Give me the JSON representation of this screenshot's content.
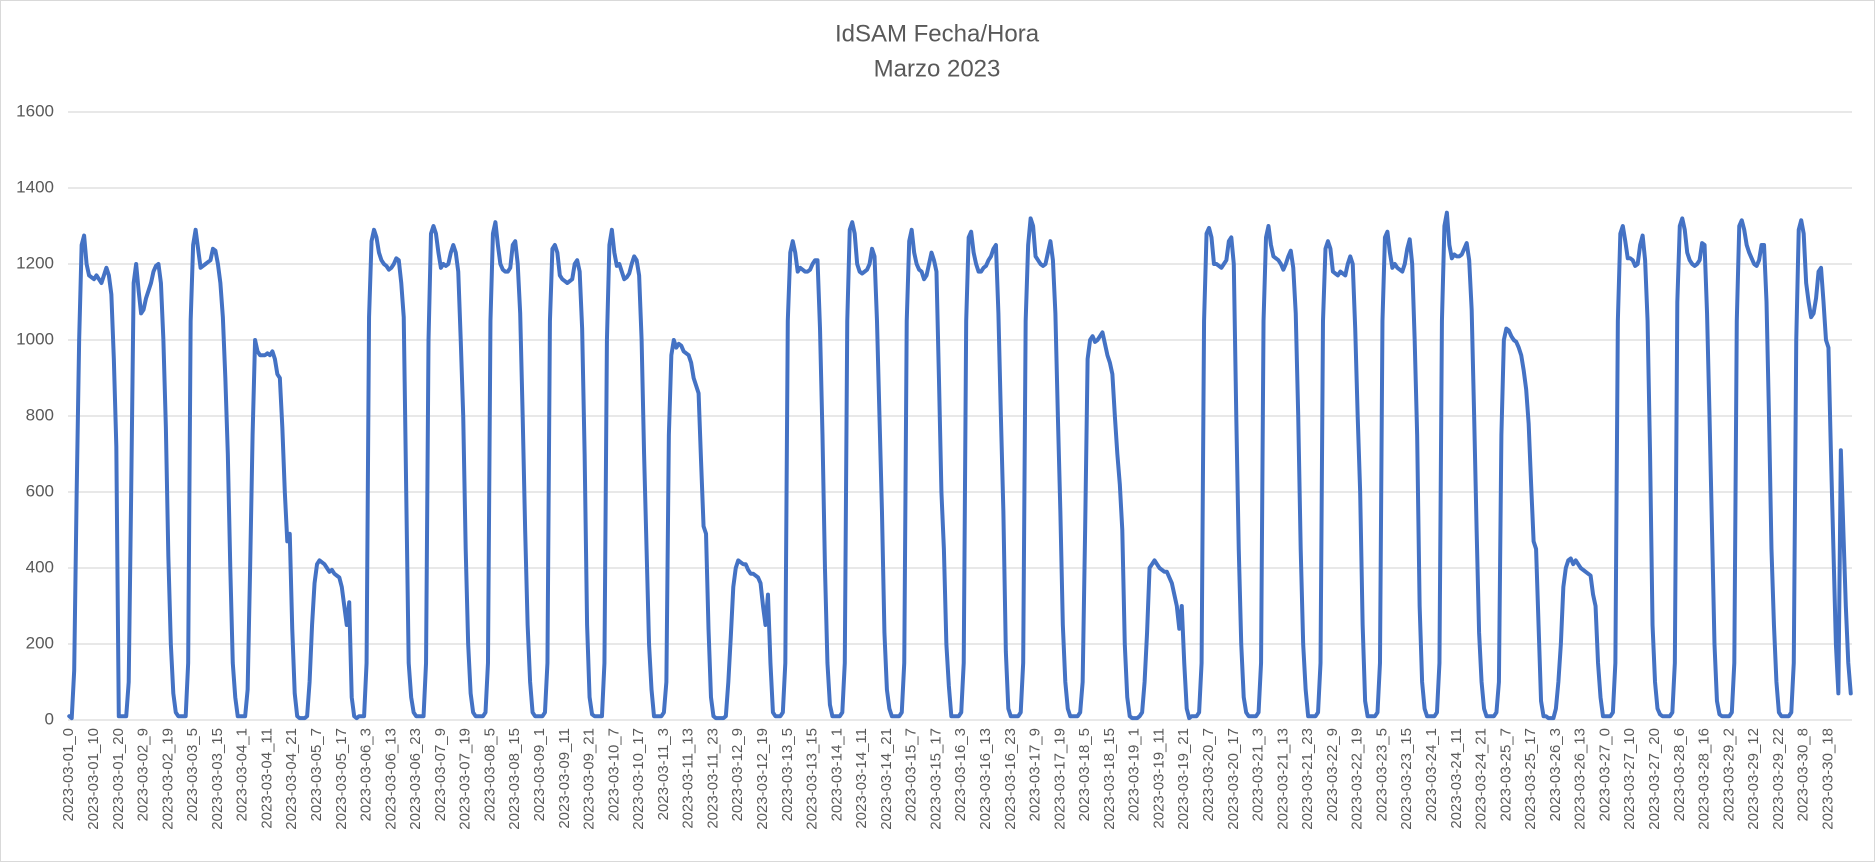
{
  "chart_data": {
    "type": "line",
    "title": "IdSAM Fecha/Hora",
    "subtitle": "Marzo 2023",
    "color": "#4472c4",
    "grid": true,
    "ylim": [
      0,
      1600
    ],
    "yticks": [
      0,
      200,
      400,
      600,
      800,
      1000,
      1200,
      1400,
      1600
    ],
    "categories": [
      "2023-03-01_0",
      null,
      null,
      null,
      null,
      null,
      null,
      null,
      null,
      null,
      "2023-03-01_10",
      null,
      null,
      null,
      null,
      null,
      null,
      null,
      null,
      null,
      "2023-03-01_20",
      null,
      null,
      null,
      null,
      null,
      null,
      null,
      null,
      null,
      "2023-03-02_9",
      null,
      null,
      null,
      null,
      null,
      null,
      null,
      null,
      null,
      "2023-03-02_19",
      null,
      null,
      null,
      null,
      null,
      null,
      null,
      null,
      null,
      "2023-03-03_5",
      null,
      null,
      null,
      null,
      null,
      null,
      null,
      null,
      null,
      "2023-03-03_15",
      null,
      null,
      null,
      null,
      null,
      null,
      null,
      null,
      null,
      "2023-03-04_1",
      null,
      null,
      null,
      null,
      null,
      null,
      null,
      null,
      null,
      "2023-03-04_11",
      null,
      null,
      null,
      null,
      null,
      null,
      null,
      null,
      null,
      "2023-03-04_21",
      null,
      null,
      null,
      null,
      null,
      null,
      null,
      null,
      null,
      "2023-03-05_7",
      null,
      null,
      null,
      null,
      null,
      null,
      null,
      null,
      null,
      "2023-03-05_17",
      null,
      null,
      null,
      null,
      null,
      null,
      null,
      null,
      null,
      "2023-03-06_3",
      null,
      null,
      null,
      null,
      null,
      null,
      null,
      null,
      null,
      "2023-03-06_13",
      null,
      null,
      null,
      null,
      null,
      null,
      null,
      null,
      null,
      "2023-03-06_23",
      null,
      null,
      null,
      null,
      null,
      null,
      null,
      null,
      null,
      "2023-03-07_9",
      null,
      null,
      null,
      null,
      null,
      null,
      null,
      null,
      null,
      "2023-03-07_19",
      null,
      null,
      null,
      null,
      null,
      null,
      null,
      null,
      null,
      "2023-03-08_5",
      null,
      null,
      null,
      null,
      null,
      null,
      null,
      null,
      null,
      "2023-03-08_15",
      null,
      null,
      null,
      null,
      null,
      null,
      null,
      null,
      null,
      "2023-03-09_1",
      null,
      null,
      null,
      null,
      null,
      null,
      null,
      null,
      null,
      "2023-03-09_11",
      null,
      null,
      null,
      null,
      null,
      null,
      null,
      null,
      null,
      "2023-03-09_21",
      null,
      null,
      null,
      null,
      null,
      null,
      null,
      null,
      null,
      "2023-03-10_7",
      null,
      null,
      null,
      null,
      null,
      null,
      null,
      null,
      null,
      "2023-03-10_17",
      null,
      null,
      null,
      null,
      null,
      null,
      null,
      null,
      null,
      "2023-03-11_3",
      null,
      null,
      null,
      null,
      null,
      null,
      null,
      null,
      null,
      "2023-03-11_13",
      null,
      null,
      null,
      null,
      null,
      null,
      null,
      null,
      null,
      "2023-03-11_23",
      null,
      null,
      null,
      null,
      null,
      null,
      null,
      null,
      null,
      "2023-03-12_9",
      null,
      null,
      null,
      null,
      null,
      null,
      null,
      null,
      null,
      "2023-03-12_19",
      null,
      null,
      null,
      null,
      null,
      null,
      null,
      null,
      null,
      "2023-03-13_5",
      null,
      null,
      null,
      null,
      null,
      null,
      null,
      null,
      null,
      "2023-03-13_15",
      null,
      null,
      null,
      null,
      null,
      null,
      null,
      null,
      null,
      "2023-03-14_1",
      null,
      null,
      null,
      null,
      null,
      null,
      null,
      null,
      null,
      "2023-03-14_11",
      null,
      null,
      null,
      null,
      null,
      null,
      null,
      null,
      null,
      "2023-03-14_21",
      null,
      null,
      null,
      null,
      null,
      null,
      null,
      null,
      null,
      "2023-03-15_7",
      null,
      null,
      null,
      null,
      null,
      null,
      null,
      null,
      null,
      "2023-03-15_17",
      null,
      null,
      null,
      null,
      null,
      null,
      null,
      null,
      null,
      "2023-03-16_3",
      null,
      null,
      null,
      null,
      null,
      null,
      null,
      null,
      null,
      "2023-03-16_13",
      null,
      null,
      null,
      null,
      null,
      null,
      null,
      null,
      null,
      "2023-03-16_23",
      null,
      null,
      null,
      null,
      null,
      null,
      null,
      null,
      null,
      "2023-03-17_9",
      null,
      null,
      null,
      null,
      null,
      null,
      null,
      null,
      null,
      "2023-03-17_19",
      null,
      null,
      null,
      null,
      null,
      null,
      null,
      null,
      null,
      "2023-03-18_5",
      null,
      null,
      null,
      null,
      null,
      null,
      null,
      null,
      null,
      "2023-03-18_15",
      null,
      null,
      null,
      null,
      null,
      null,
      null,
      null,
      null,
      "2023-03-19_1",
      null,
      null,
      null,
      null,
      null,
      null,
      null,
      null,
      null,
      "2023-03-19_11",
      null,
      null,
      null,
      null,
      null,
      null,
      null,
      null,
      null,
      "2023-03-19_21",
      null,
      null,
      null,
      null,
      null,
      null,
      null,
      null,
      null,
      "2023-03-20_7",
      null,
      null,
      null,
      null,
      null,
      null,
      null,
      null,
      null,
      "2023-03-20_17",
      null,
      null,
      null,
      null,
      null,
      null,
      null,
      null,
      null,
      "2023-03-21_3",
      null,
      null,
      null,
      null,
      null,
      null,
      null,
      null,
      null,
      "2023-03-21_13",
      null,
      null,
      null,
      null,
      null,
      null,
      null,
      null,
      null,
      "2023-03-21_23",
      null,
      null,
      null,
      null,
      null,
      null,
      null,
      null,
      null,
      "2023-03-22_9",
      null,
      null,
      null,
      null,
      null,
      null,
      null,
      null,
      null,
      "2023-03-22_19",
      null,
      null,
      null,
      null,
      null,
      null,
      null,
      null,
      null,
      "2023-03-23_5",
      null,
      null,
      null,
      null,
      null,
      null,
      null,
      null,
      null,
      "2023-03-23_15",
      null,
      null,
      null,
      null,
      null,
      null,
      null,
      null,
      null,
      "2023-03-24_1",
      null,
      null,
      null,
      null,
      null,
      null,
      null,
      null,
      null,
      "2023-03-24_11",
      null,
      null,
      null,
      null,
      null,
      null,
      null,
      null,
      null,
      "2023-03-24_21",
      null,
      null,
      null,
      null,
      null,
      null,
      null,
      null,
      null,
      "2023-03-25_7",
      null,
      null,
      null,
      null,
      null,
      null,
      null,
      null,
      null,
      "2023-03-25_17",
      null,
      null,
      null,
      null,
      null,
      null,
      null,
      null,
      null,
      "2023-03-26_3",
      null,
      null,
      null,
      null,
      null,
      null,
      null,
      null,
      null,
      "2023-03-26_13",
      null,
      null,
      null,
      null,
      null,
      null,
      null,
      null,
      null,
      "2023-03-27_0",
      null,
      null,
      null,
      null,
      null,
      null,
      null,
      null,
      null,
      "2023-03-27_10",
      null,
      null,
      null,
      null,
      null,
      null,
      null,
      null,
      null,
      "2023-03-27_20",
      null,
      null,
      null,
      null,
      null,
      null,
      null,
      null,
      null,
      "2023-03-28_6",
      null,
      null,
      null,
      null,
      null,
      null,
      null,
      null,
      null,
      "2023-03-28_16",
      null,
      null,
      null,
      null,
      null,
      null,
      null,
      null,
      null,
      "2023-03-29_2",
      null,
      null,
      null,
      null,
      null,
      null,
      null,
      null,
      null,
      "2023-03-29_12",
      null,
      null,
      null,
      null,
      null,
      null,
      null,
      null,
      null,
      "2023-03-29_22",
      null,
      null,
      null,
      null,
      null,
      null,
      null,
      null,
      null,
      "2023-03-30_8",
      null,
      null,
      null,
      null,
      null,
      null,
      null,
      null,
      null,
      "2023-03-30_18",
      null,
      null,
      null,
      null,
      null,
      null,
      null,
      null,
      null
    ],
    "values": [
      10,
      5,
      130,
      600,
      1000,
      1250,
      1275,
      1200,
      1170,
      1165,
      1160,
      1170,
      1160,
      1150,
      1170,
      1190,
      1170,
      1120,
      950,
      720,
      10,
      10,
      10,
      10,
      100,
      600,
      1150,
      1200,
      1130,
      1070,
      1080,
      1110,
      1130,
      1150,
      1180,
      1195,
      1200,
      1150,
      1000,
      770,
      430,
      200,
      70,
      20,
      10,
      10,
      10,
      10,
      150,
      1050,
      1250,
      1290,
      1240,
      1190,
      1195,
      1200,
      1205,
      1210,
      1240,
      1235,
      1200,
      1150,
      1060,
      900,
      700,
      400,
      150,
      60,
      10,
      10,
      10,
      10,
      80,
      400,
      750,
      1000,
      970,
      960,
      960,
      960,
      965,
      960,
      970,
      950,
      910,
      900,
      770,
      600,
      470,
      490,
      240,
      70,
      10,
      5,
      5,
      5,
      10,
      100,
      250,
      360,
      410,
      420,
      415,
      410,
      400,
      390,
      395,
      385,
      380,
      375,
      350,
      300,
      250,
      310,
      60,
      10,
      5,
      10,
      10,
      10,
      150,
      1060,
      1260,
      1290,
      1270,
      1230,
      1210,
      1200,
      1195,
      1185,
      1190,
      1200,
      1215,
      1210,
      1150,
      1060,
      600,
      150,
      60,
      20,
      10,
      10,
      10,
      10,
      150,
      1000,
      1280,
      1300,
      1280,
      1230,
      1190,
      1200,
      1195,
      1200,
      1230,
      1250,
      1230,
      1180,
      1000,
      800,
      450,
      200,
      70,
      20,
      10,
      10,
      10,
      10,
      20,
      150,
      1050,
      1280,
      1310,
      1250,
      1200,
      1185,
      1180,
      1180,
      1190,
      1250,
      1260,
      1200,
      1070,
      800,
      500,
      250,
      100,
      20,
      10,
      10,
      10,
      10,
      20,
      150,
      1050,
      1240,
      1250,
      1230,
      1170,
      1160,
      1155,
      1150,
      1155,
      1160,
      1200,
      1210,
      1180,
      1030,
      700,
      250,
      60,
      15,
      10,
      10,
      10,
      10,
      150,
      1000,
      1250,
      1290,
      1230,
      1195,
      1200,
      1180,
      1160,
      1165,
      1175,
      1200,
      1220,
      1210,
      1170,
      1000,
      700,
      450,
      200,
      80,
      10,
      10,
      10,
      10,
      20,
      100,
      750,
      960,
      1000,
      980,
      990,
      985,
      970,
      965,
      960,
      940,
      900,
      880,
      860,
      680,
      510,
      490,
      240,
      60,
      10,
      5,
      5,
      5,
      5,
      10,
      100,
      220,
      350,
      400,
      420,
      415,
      410,
      410,
      395,
      385,
      385,
      380,
      375,
      360,
      300,
      250,
      330,
      150,
      20,
      10,
      10,
      10,
      20,
      150,
      1050,
      1230,
      1260,
      1230,
      1180,
      1190,
      1185,
      1180,
      1180,
      1185,
      1200,
      1210,
      1210,
      1030,
      750,
      400,
      150,
      40,
      10,
      10,
      10,
      10,
      20,
      150,
      1050,
      1290,
      1310,
      1280,
      1200,
      1180,
      1175,
      1180,
      1185,
      1200,
      1240,
      1220,
      1050,
      800,
      550,
      230,
      80,
      30,
      10,
      10,
      10,
      10,
      20,
      150,
      1050,
      1260,
      1290,
      1230,
      1200,
      1185,
      1180,
      1160,
      1170,
      1200,
      1230,
      1210,
      1180,
      900,
      600,
      450,
      200,
      90,
      10,
      10,
      10,
      10,
      20,
      150,
      1050,
      1270,
      1285,
      1230,
      1200,
      1180,
      1180,
      1190,
      1195,
      1210,
      1220,
      1240,
      1250,
      1070,
      800,
      550,
      180,
      30,
      10,
      10,
      10,
      10,
      20,
      150,
      1050,
      1250,
      1320,
      1300,
      1220,
      1210,
      1200,
      1195,
      1200,
      1230,
      1260,
      1210,
      1070,
      800,
      550,
      250,
      100,
      30,
      10,
      10,
      10,
      10,
      20,
      100,
      500,
      950,
      1000,
      1010,
      995,
      1000,
      1010,
      1020,
      990,
      960,
      940,
      910,
      800,
      700,
      620,
      500,
      200,
      60,
      10,
      5,
      5,
      5,
      10,
      20,
      100,
      230,
      400,
      410,
      420,
      410,
      400,
      395,
      390,
      390,
      375,
      360,
      330,
      300,
      240,
      300,
      150,
      30,
      5,
      10,
      10,
      10,
      20,
      150,
      1050,
      1280,
      1295,
      1270,
      1200,
      1200,
      1195,
      1190,
      1200,
      1210,
      1260,
      1270,
      1200,
      800,
      450,
      200,
      60,
      20,
      10,
      10,
      10,
      10,
      20,
      150,
      1050,
      1270,
      1300,
      1250,
      1220,
      1215,
      1210,
      1200,
      1185,
      1200,
      1220,
      1235,
      1190,
      1070,
      800,
      450,
      200,
      80,
      10,
      10,
      10,
      10,
      20,
      150,
      1050,
      1240,
      1260,
      1240,
      1180,
      1175,
      1170,
      1180,
      1175,
      1170,
      1200,
      1220,
      1200,
      1030,
      800,
      600,
      250,
      50,
      10,
      10,
      10,
      10,
      20,
      150,
      1050,
      1270,
      1285,
      1230,
      1190,
      1200,
      1190,
      1185,
      1180,
      1200,
      1240,
      1265,
      1200,
      1000,
      750,
      300,
      100,
      30,
      10,
      10,
      10,
      10,
      20,
      150,
      1050,
      1300,
      1335,
      1250,
      1215,
      1225,
      1220,
      1220,
      1225,
      1240,
      1255,
      1210,
      1080,
      800,
      500,
      230,
      100,
      30,
      10,
      10,
      10,
      10,
      20,
      100,
      750,
      1000,
      1030,
      1025,
      1010,
      1000,
      995,
      980,
      960,
      920,
      870,
      780,
      620,
      470,
      450,
      250,
      50,
      10,
      10,
      5,
      5,
      5,
      30,
      100,
      200,
      350,
      400,
      420,
      425,
      410,
      420,
      410,
      400,
      395,
      390,
      385,
      380,
      330,
      300,
      150,
      60,
      10,
      10,
      10,
      10,
      20,
      150,
      1050,
      1280,
      1300,
      1260,
      1215,
      1215,
      1210,
      1195,
      1200,
      1250,
      1275,
      1210,
      1050,
      700,
      250,
      100,
      30,
      15,
      10,
      10,
      10,
      10,
      20,
      150,
      1100,
      1300,
      1320,
      1290,
      1230,
      1210,
      1200,
      1195,
      1200,
      1210,
      1255,
      1250,
      1070,
      800,
      500,
      200,
      50,
      15,
      10,
      10,
      10,
      10,
      20,
      150,
      1050,
      1300,
      1315,
      1290,
      1250,
      1230,
      1215,
      1200,
      1195,
      1210,
      1250,
      1250,
      1100,
      800,
      450,
      250,
      100,
      20,
      10,
      10,
      10,
      10,
      20,
      150,
      1000,
      1290,
      1315,
      1280,
      1150,
      1100,
      1060,
      1070,
      1110,
      1180,
      1190,
      1100,
      1000,
      980,
      700,
      450,
      200,
      70,
      710,
      500,
      300,
      150,
      70
    ]
  }
}
